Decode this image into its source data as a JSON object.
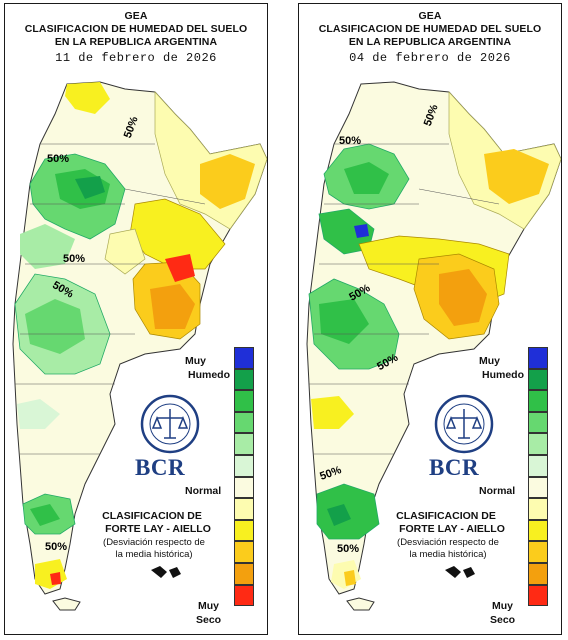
{
  "panels": [
    {
      "title_line1": "GEA",
      "title_line2": "CLASIFICACION DE HUMEDAD DEL SUELO",
      "title_line3": "EN LA REPUBLICA ARGENTINA",
      "date": "11 de febrero de 2026",
      "contour_labels": [
        "50%",
        "50%",
        "50%",
        "50%",
        "50%"
      ]
    },
    {
      "title_line1": "GEA",
      "title_line2": "CLASIFICACION DE HUMEDAD DEL SUELO",
      "title_line3": "EN LA REPUBLICA ARGENTINA",
      "date": "04 de febrero de 2026",
      "contour_labels": [
        "50%",
        "50%",
        "50%",
        "50%",
        "50%",
        "50%"
      ]
    }
  ],
  "legend": {
    "top_label_1": "Muy",
    "top_label_2": "Humedo",
    "middle_label": "Normal",
    "bottom_label_1": "Muy",
    "bottom_label_2": "Seco",
    "colors": [
      "#1f2fd8",
      "#13a04a",
      "#30c048",
      "#66d870",
      "#a8eca6",
      "#d9f6d6",
      "#fbfbe0",
      "#fdfcb0",
      "#f8f020",
      "#fbcc1c",
      "#f3a00e",
      "#ff2a14"
    ]
  },
  "classification": {
    "line1": "CLASIFICACION DE",
    "line2": "FORTE LAY - AIELLO",
    "line3": "(Desviación respecto de",
    "line4": "la media histórica)"
  },
  "logo": {
    "text": "BCR",
    "ring_text": "BOLSA DE COMERCIO DE ROSARIO",
    "color": "#1f3f83"
  }
}
